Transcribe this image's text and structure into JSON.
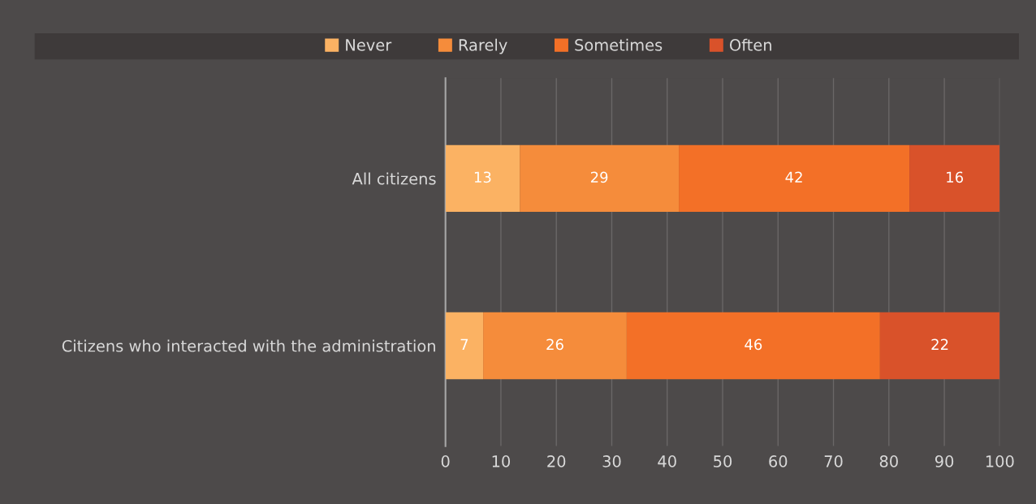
{
  "chart_data": {
    "type": "bar",
    "orientation": "horizontal",
    "stacked": true,
    "categories": [
      "All citizens",
      "Citizens who interacted with the administration"
    ],
    "series": [
      {
        "name": "Never",
        "color": "#fbb263",
        "values": [
          13.4,
          6.8
        ],
        "value_labels": [
          "13",
          "7"
        ]
      },
      {
        "name": "Rarely",
        "color": "#f58c3b",
        "values": [
          28.7,
          25.9
        ],
        "value_labels": [
          "29",
          "26"
        ]
      },
      {
        "name": "Sometimes",
        "color": "#f37027",
        "values": [
          41.6,
          45.7
        ],
        "value_labels": [
          "42",
          "46"
        ]
      },
      {
        "name": "Often",
        "color": "#d9522a",
        "values": [
          16.3,
          21.6
        ],
        "value_labels": [
          "16",
          "22"
        ]
      }
    ],
    "xlim": [
      0,
      100
    ],
    "xticks": [
      0,
      10,
      20,
      30,
      40,
      50,
      60,
      70,
      80,
      90,
      100
    ],
    "grid": "x",
    "legend": "top"
  }
}
